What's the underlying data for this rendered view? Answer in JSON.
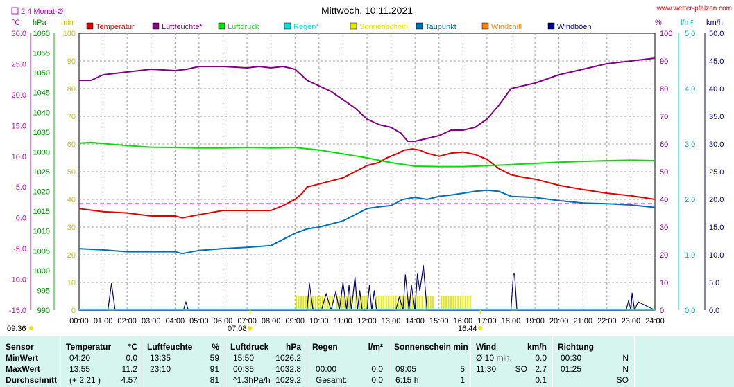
{
  "chart_data": {
    "type": "line",
    "title": "Mittwoch, 10.11.2021",
    "site": "www.wetter-pfalzen.com",
    "avg_label": "2.4 Monat-Ø",
    "unit_labels": {
      "temp": "°C",
      "pressure": "hPa",
      "minutes": "min",
      "percent": "%",
      "rain": "l/m²",
      "wind": "km/h"
    },
    "legend": [
      {
        "name": "Temperatur",
        "color": "#e00000"
      },
      {
        "name": "Luftfeuchte*",
        "color": "#800080"
      },
      {
        "name": "Luftdruck",
        "color": "#00e000"
      },
      {
        "name": "Regen*",
        "color": "#00e0e0"
      },
      {
        "name": "Sonnenschein",
        "color": "#e8e800"
      },
      {
        "name": "Taupunkt",
        "color": "#0070b0"
      },
      {
        "name": "Windchill",
        "color": "#ff8000"
      },
      {
        "name": "Windböen",
        "color": "#000080"
      }
    ],
    "axes": {
      "temp": {
        "range": [
          -15,
          30
        ],
        "ticks": [
          "30.0",
          "25.0",
          "20.0",
          "15.0",
          "10.0",
          "5.0",
          "0.0",
          "-5.0",
          "-10.0",
          "-15.0"
        ]
      },
      "pressure": {
        "range": [
          990,
          1060
        ],
        "ticks": [
          "1060",
          "1055",
          "1050",
          "1045",
          "1040",
          "1035",
          "1030",
          "1025",
          "1020",
          "1015",
          "1010",
          "1005",
          "1000",
          "995",
          "990"
        ]
      },
      "minutes": {
        "range": [
          0,
          100
        ],
        "ticks": [
          "100",
          "90",
          "80",
          "70",
          "60",
          "50",
          "40",
          "30",
          "20",
          "10",
          "0"
        ]
      },
      "percent": {
        "range": [
          0,
          100
        ],
        "ticks": [
          "100",
          "90",
          "80",
          "70",
          "60",
          "50",
          "40",
          "30",
          "20",
          "10",
          "0"
        ]
      },
      "rain": {
        "range": [
          0,
          5
        ],
        "ticks": [
          "5.0",
          "4.0",
          "3.0",
          "2.0",
          "1.0",
          "0.0"
        ]
      },
      "wind": {
        "range": [
          0,
          50
        ],
        "ticks": [
          "50.0",
          "45.0",
          "40.0",
          "35.0",
          "30.0",
          "25.0",
          "20.0",
          "15.0",
          "10.0",
          "5.0",
          "0.0"
        ]
      }
    },
    "x_ticks": [
      "00:00",
      "01:00",
      "02:00",
      "03:00",
      "04:00",
      "05:00",
      "06:00",
      "07:00",
      "08:00",
      "09:00",
      "10:00",
      "11:00",
      "12:00",
      "13:00",
      "14:00",
      "15:00",
      "16:00",
      "17:00",
      "18:00",
      "19:00",
      "20:00",
      "21:00",
      "22:00",
      "23:00",
      "24:00"
    ],
    "grid": true,
    "sun_times": [
      "09:36",
      "07:08",
      "16:44"
    ],
    "avg_reference_percent": 38.5,
    "series": [
      {
        "name": "Temperatur",
        "color": "#e00000",
        "units": "°C",
        "x": [
          0,
          1,
          2,
          3,
          4,
          4.3,
          5,
          6,
          7,
          8,
          8.5,
          9,
          9.3,
          9.5,
          10,
          10.5,
          11,
          11.5,
          12,
          12.5,
          12.8,
          13.3,
          13.55,
          13.9,
          14.2,
          14.5,
          15,
          15.5,
          16,
          16.5,
          17,
          17.5,
          18,
          18.5,
          19,
          20,
          21,
          22,
          23,
          24
        ],
        "y": [
          1.5,
          1.0,
          0.8,
          0.3,
          0.3,
          0,
          0.5,
          1.2,
          1.2,
          1.2,
          2,
          3,
          4,
          5,
          5.5,
          6,
          6.5,
          7.5,
          8.5,
          9,
          9.7,
          10.5,
          11,
          11.2,
          11,
          10.5,
          10,
          10.5,
          10.7,
          10.3,
          9.5,
          8,
          7,
          6.6,
          6.3,
          5.3,
          4.6,
          4,
          3.6,
          3.0
        ]
      },
      {
        "name": "Luftfeuchte",
        "color": "#800080",
        "units": "%",
        "x": [
          0,
          0.5,
          1,
          2,
          3,
          4,
          4.5,
          5,
          6,
          7,
          7.5,
          8,
          8.5,
          9,
          9.5,
          10,
          10.5,
          11,
          11.5,
          12,
          12.5,
          13,
          13.4,
          13.7,
          14,
          14.5,
          15,
          15.5,
          16,
          16.5,
          17,
          17.5,
          18,
          18.5,
          19,
          20,
          21,
          22,
          23,
          24
        ],
        "y": [
          83,
          83,
          85,
          86,
          87,
          86.5,
          87,
          88,
          88,
          87.5,
          88,
          87.5,
          88,
          87,
          83,
          81,
          79,
          76,
          73,
          69,
          67,
          66,
          64,
          61,
          61,
          62,
          63,
          65,
          65,
          66,
          69,
          74,
          80,
          81,
          82,
          85,
          87,
          89,
          90,
          91
        ]
      },
      {
        "name": "Luftdruck",
        "color": "#00e000",
        "units": "hPa",
        "x": [
          0,
          0.5,
          1,
          2,
          3,
          4,
          5,
          6,
          7,
          8,
          9,
          10,
          11,
          12,
          13,
          14,
          15,
          16,
          17,
          18,
          19,
          20,
          21,
          22,
          23,
          24
        ],
        "y": [
          1032.2,
          1032.4,
          1032.1,
          1031.6,
          1031.2,
          1031.1,
          1031.0,
          1031.0,
          1031.1,
          1031.0,
          1031.1,
          1030.5,
          1029.5,
          1028.5,
          1027.3,
          1026.4,
          1026.3,
          1026.3,
          1026.5,
          1026.8,
          1027.1,
          1027.4,
          1027.6,
          1027.8,
          1027.9,
          1027.8
        ]
      },
      {
        "name": "Taupunkt",
        "color": "#0070b0",
        "units": "°C",
        "x": [
          0,
          1,
          2,
          3,
          4,
          4.3,
          5,
          6,
          7,
          8,
          8.5,
          9,
          9.5,
          10,
          10.5,
          11,
          11.5,
          12,
          12.5,
          13,
          13.5,
          14,
          14.5,
          15,
          15.5,
          16,
          16.5,
          17,
          17.5,
          18,
          19,
          20,
          21,
          22,
          23,
          24
        ],
        "y": [
          -5,
          -5.2,
          -5.5,
          -5.5,
          -5.5,
          -5.8,
          -5.3,
          -5.0,
          -4.8,
          -4.5,
          -3.5,
          -2.5,
          -1.8,
          -1.5,
          -1.0,
          -0.5,
          0.5,
          1.5,
          1.8,
          2.0,
          3.0,
          3.3,
          3.0,
          3.5,
          3.7,
          4,
          4.3,
          4.5,
          4.3,
          3.5,
          3.3,
          2.8,
          2.4,
          2.3,
          2.1,
          1.7
        ]
      },
      {
        "name": "Sonnenschein",
        "color": "#e8e800",
        "units": "min",
        "intervals": [
          [
            9.05,
            10.55
          ],
          [
            10.75,
            11.35
          ],
          [
            11.5,
            12.0
          ],
          [
            12.4,
            14.3
          ],
          [
            14.45,
            14.8
          ],
          [
            15.1,
            16.35
          ]
        ],
        "value": 5
      },
      {
        "name": "Windböen",
        "color": "#000080",
        "units": "km/h",
        "x": [
          0,
          1.2,
          1.35,
          1.5,
          4.35,
          4.45,
          4.55,
          9.5,
          9.6,
          9.75,
          10.1,
          10.3,
          10.5,
          10.7,
          10.85,
          11.0,
          11.15,
          11.25,
          11.35,
          11.5,
          11.6,
          11.7,
          11.8,
          12.0,
          12.1,
          12.2,
          12.3,
          12.4,
          12.5,
          13.2,
          13.35,
          13.5,
          13.6,
          13.75,
          13.85,
          14.0,
          14.1,
          14.2,
          14.35,
          14.5,
          18.0,
          18.1,
          18.15,
          18.25,
          18.35,
          22.8,
          22.9,
          23.0,
          23.05,
          23.15,
          23.3,
          24
        ],
        "y": [
          0,
          0,
          4.8,
          0,
          0,
          1.5,
          0,
          0,
          4.8,
          0,
          0,
          3,
          0,
          3.3,
          0,
          5,
          0,
          4.5,
          0,
          6,
          0,
          3.5,
          0,
          0,
          4.5,
          0,
          3.5,
          0,
          0,
          0,
          2.4,
          0,
          6.4,
          0,
          4.5,
          0,
          6.5,
          3.5,
          8,
          0,
          0,
          6.5,
          6.5,
          0,
          0,
          0,
          1.7,
          0,
          3.1,
          0,
          1.5,
          0
        ]
      }
    ]
  },
  "table": {
    "headers": {
      "sensor": "Sensor",
      "temperature": "Temperatur",
      "temp_unit": "°C",
      "humidity": "Luftfeuchte",
      "humidity_unit": "%",
      "pressure": "Luftdruck",
      "pressure_unit": "hPa",
      "rain": "Regen",
      "rain_unit": "l/m²",
      "sun": "Sonnenschein min",
      "wind": "Wind",
      "wind_unit": "km/h",
      "direction": "Richtung"
    },
    "rows": [
      {
        "label": "MinWert",
        "temp_time": "04:20",
        "temp_val": "0.0",
        "hum_time": "13:35",
        "hum_val": "59",
        "press_time": "15:50",
        "press_val": "1026.2",
        "rain_time": "",
        "rain_val": "",
        "sun_time": "",
        "sun_val": "",
        "wind_time": "Ø 10 min.",
        "wind_dir": "",
        "wind_val": "0.0",
        "dir_time": "00:30",
        "dir_val": "N"
      },
      {
        "label": "MaxWert",
        "temp_time": "13:55",
        "temp_val": "11.2",
        "hum_time": "23:10",
        "hum_val": "91",
        "press_time": "00:35",
        "press_val": "1032.8",
        "rain_time": "00:00",
        "rain_val": "0.0",
        "sun_time": "09:05",
        "sun_val": "5",
        "wind_time": "11:30",
        "wind_dir": "SO",
        "wind_val": "2.7",
        "dir_time": "01:25",
        "dir_val": "N"
      },
      {
        "label": "Durchschnitt",
        "temp_time": "(+ 2.21 )",
        "temp_val": "4.57",
        "hum_time": "",
        "hum_val": "81",
        "press_time": "^1.3hPa/h",
        "press_val": "1029.2",
        "rain_time": "Gesamt:",
        "rain_val": "0.0",
        "sun_time": "6:15 h",
        "sun_val": "1",
        "wind_time": "",
        "wind_dir": "",
        "wind_val": "0.1",
        "dir_time": "",
        "dir_val": "SO"
      }
    ]
  }
}
